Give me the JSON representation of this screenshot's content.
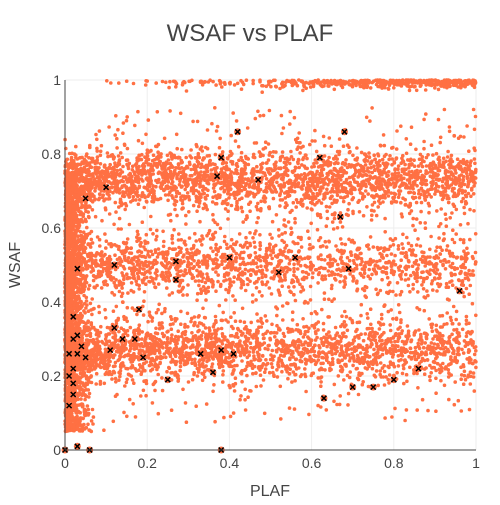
{
  "chart_data": {
    "type": "scatter",
    "title": "WSAF vs PLAF",
    "xlabel": "PLAF",
    "ylabel": "WSAF",
    "xlim": [
      0,
      1
    ],
    "ylim": [
      0,
      1
    ],
    "x_ticks": [
      {
        "value": 0,
        "label": "0"
      },
      {
        "value": 0.2,
        "label": "0.2"
      },
      {
        "value": 0.4,
        "label": "0.4"
      },
      {
        "value": 0.6,
        "label": "0.6"
      },
      {
        "value": 0.8,
        "label": "0.8"
      },
      {
        "value": 1,
        "label": "1"
      }
    ],
    "y_ticks": [
      {
        "value": 0,
        "label": "0"
      },
      {
        "value": 0.2,
        "label": "0.2"
      },
      {
        "value": 0.4,
        "label": "0.4"
      },
      {
        "value": 0.6,
        "label": "0.6"
      },
      {
        "value": 0.8,
        "label": "0.8"
      },
      {
        "value": 1,
        "label": "1"
      }
    ],
    "grid": true,
    "legend": "none",
    "colors": {
      "points": "#ff7043",
      "crosses": "#000000",
      "axis": "#444444",
      "grid": "#eeeeee"
    },
    "series": [
      {
        "marker": "dot",
        "point_count_approx": 9000,
        "clusters": [
          {
            "wsaf_center": 0.73,
            "wsaf_spread": 0.04,
            "plaf_range": [
              0,
              1
            ],
            "density": "high",
            "approx_points": 2400
          },
          {
            "wsaf_center": 0.5,
            "wsaf_spread": 0.04,
            "plaf_range": [
              0,
              1
            ],
            "density": "medium",
            "approx_points": 1400
          },
          {
            "wsaf_center": 0.27,
            "wsaf_spread": 0.04,
            "plaf_range": [
              0,
              1
            ],
            "density": "high, densest near PLAF 0-0.5",
            "approx_points": 2200
          },
          {
            "wsaf_center": 0.99,
            "wsaf_spread": 0.01,
            "plaf_range": [
              0,
              1
            ],
            "density": "thin band along top, dense near PLAF 0.9-1",
            "approx_points": 500
          },
          {
            "wsaf_center": 0.4,
            "wsaf_spread": 0.35,
            "plaf_range": [
              0,
              0.1
            ],
            "density": "very high fan near PLAF 0",
            "approx_points": 1800
          },
          {
            "wsaf_center": 0.5,
            "wsaf_spread": 0.25,
            "plaf_range": [
              0,
              1
            ],
            "density": "sparse scatter",
            "approx_points": 700
          }
        ]
      },
      {
        "marker": "x",
        "points": [
          [
            0.03,
            0.01
          ],
          [
            0.01,
            0.12
          ],
          [
            0.02,
            0.15
          ],
          [
            0.01,
            0.2
          ],
          [
            0.02,
            0.22
          ],
          [
            0.02,
            0.18
          ],
          [
            0.03,
            0.26
          ],
          [
            0.01,
            0.26
          ],
          [
            0.02,
            0.3
          ],
          [
            0.04,
            0.28
          ],
          [
            0.03,
            0.31
          ],
          [
            0.02,
            0.36
          ],
          [
            0.05,
            0.25
          ],
          [
            0.03,
            0.49
          ],
          [
            0.05,
            0.68
          ],
          [
            0.06,
            0.0
          ],
          [
            0.1,
            0.71
          ],
          [
            0.12,
            0.5
          ],
          [
            0.12,
            0.33
          ],
          [
            0.11,
            0.27
          ],
          [
            0.14,
            0.3
          ],
          [
            0.17,
            0.3
          ],
          [
            0.18,
            0.38
          ],
          [
            0.19,
            0.25
          ],
          [
            0.25,
            0.19
          ],
          [
            0.27,
            0.51
          ],
          [
            0.27,
            0.46
          ],
          [
            0.33,
            0.26
          ],
          [
            0.36,
            0.21
          ],
          [
            0.37,
            0.74
          ],
          [
            0.38,
            0.27
          ],
          [
            0.38,
            0.79
          ],
          [
            0.4,
            0.52
          ],
          [
            0.41,
            0.26
          ],
          [
            0.42,
            0.86
          ],
          [
            0.47,
            0.73
          ],
          [
            0.52,
            0.48
          ],
          [
            0.56,
            0.52
          ],
          [
            0.62,
            0.79
          ],
          [
            0.63,
            0.14
          ],
          [
            0.67,
            0.63
          ],
          [
            0.68,
            0.86
          ],
          [
            0.69,
            0.49
          ],
          [
            0.7,
            0.17
          ],
          [
            0.75,
            0.17
          ],
          [
            0.8,
            0.19
          ],
          [
            0.86,
            0.22
          ],
          [
            0.96,
            0.43
          ],
          [
            0.38,
            0.0
          ],
          [
            0.0,
            0.0
          ]
        ]
      }
    ]
  }
}
